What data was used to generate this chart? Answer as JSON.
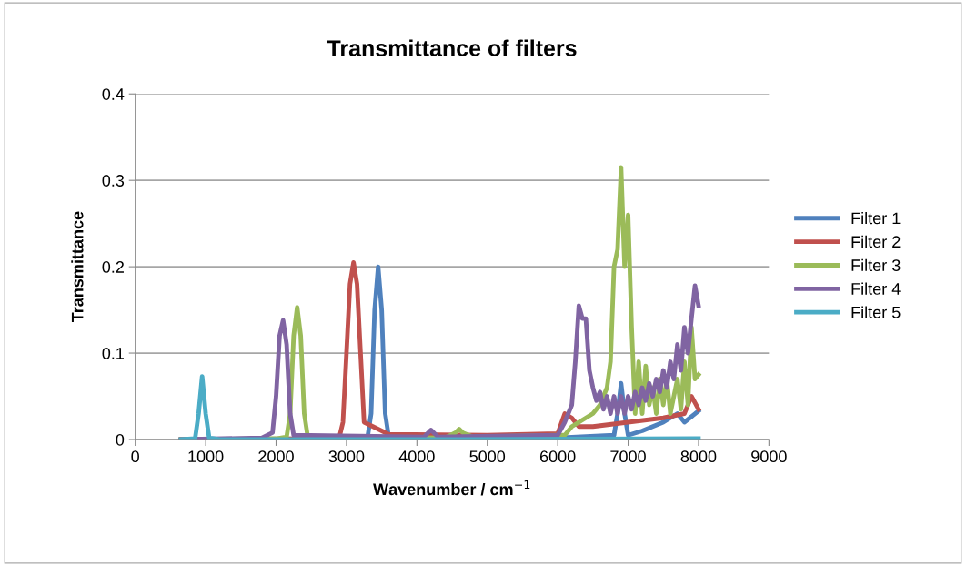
{
  "chart_data": {
    "type": "line",
    "title": "Transmittance of filters",
    "xlabel": "Wavenumber / cm$^{−1}$",
    "ylabel": "Transmittance",
    "xlim": [
      0,
      9000
    ],
    "xticks": [
      0,
      1000,
      2000,
      3000,
      4000,
      5000,
      6000,
      7000,
      8000,
      9000
    ],
    "ylim": [
      0,
      0.4
    ],
    "yticks": [
      0,
      0.1,
      0.2,
      0.3,
      0.4
    ],
    "grid": "y",
    "legend": "right",
    "marker": "none",
    "line_style": "solid",
    "series": [
      {
        "name": "Filter 1",
        "color": "#4f81bd",
        "x": [
          650,
          3000,
          3300,
          3350,
          3400,
          3450,
          3500,
          3550,
          3600,
          4000,
          5000,
          6000,
          6800,
          6850,
          6900,
          6950,
          7000,
          7200,
          7500,
          7700,
          7800,
          8000
        ],
        "values": [
          0,
          0.001,
          0.003,
          0.03,
          0.15,
          0.2,
          0.15,
          0.03,
          0.003,
          0.002,
          0.002,
          0.002,
          0.005,
          0.03,
          0.065,
          0.03,
          0.005,
          0.01,
          0.02,
          0.03,
          0.02,
          0.033
        ]
      },
      {
        "name": "Filter 2",
        "color": "#c0504d",
        "x": [
          650,
          2500,
          2900,
          2950,
          3000,
          3050,
          3100,
          3150,
          3200,
          3250,
          3600,
          5000,
          6000,
          6100,
          6200,
          6300,
          6500,
          7000,
          7500,
          7800,
          7900,
          8000
        ],
        "values": [
          0,
          0.001,
          0.003,
          0.02,
          0.1,
          0.18,
          0.205,
          0.18,
          0.1,
          0.02,
          0.006,
          0.005,
          0.007,
          0.03,
          0.025,
          0.015,
          0.015,
          0.02,
          0.025,
          0.03,
          0.05,
          0.035
        ]
      },
      {
        "name": "Filter 3",
        "color": "#9bbb59",
        "x": [
          650,
          2000,
          2150,
          2200,
          2250,
          2300,
          2350,
          2400,
          2450,
          4400,
          4550,
          4600,
          4650,
          4800,
          6000,
          6100,
          6200,
          6300,
          6400,
          6500,
          6600,
          6700,
          6750,
          6800,
          6850,
          6900,
          6950,
          7000,
          7050,
          7100,
          7150,
          7200,
          7250,
          7300,
          7350,
          7400,
          7450,
          7500,
          7550,
          7600,
          7700,
          7750,
          7800,
          7850,
          7900,
          7950,
          8000
        ],
        "values": [
          0,
          0.001,
          0.003,
          0.03,
          0.12,
          0.153,
          0.12,
          0.03,
          0.003,
          0.002,
          0.008,
          0.012,
          0.008,
          0.003,
          0.005,
          0.005,
          0.015,
          0.02,
          0.025,
          0.03,
          0.04,
          0.06,
          0.09,
          0.2,
          0.22,
          0.315,
          0.2,
          0.26,
          0.13,
          0.03,
          0.09,
          0.03,
          0.085,
          0.04,
          0.06,
          0.03,
          0.07,
          0.04,
          0.07,
          0.03,
          0.07,
          0.035,
          0.09,
          0.04,
          0.13,
          0.07,
          0.075
        ]
      },
      {
        "name": "Filter 4",
        "color": "#8064a2",
        "x": [
          650,
          1800,
          1950,
          2000,
          2050,
          2100,
          2150,
          2200,
          2250,
          4100,
          4200,
          4300,
          6000,
          6100,
          6200,
          6250,
          6300,
          6350,
          6400,
          6450,
          6500,
          6550,
          6600,
          6650,
          6700,
          6750,
          6800,
          6850,
          6900,
          6950,
          7000,
          7050,
          7100,
          7150,
          7200,
          7250,
          7300,
          7350,
          7400,
          7450,
          7500,
          7550,
          7600,
          7650,
          7700,
          7750,
          7800,
          7850,
          7900,
          7950,
          8000
        ],
        "values": [
          0,
          0.002,
          0.008,
          0.05,
          0.12,
          0.138,
          0.11,
          0.03,
          0.005,
          0.003,
          0.011,
          0.003,
          0.005,
          0.02,
          0.04,
          0.09,
          0.155,
          0.14,
          0.14,
          0.08,
          0.06,
          0.045,
          0.055,
          0.035,
          0.05,
          0.03,
          0.05,
          0.03,
          0.05,
          0.03,
          0.05,
          0.035,
          0.055,
          0.04,
          0.06,
          0.045,
          0.065,
          0.05,
          0.07,
          0.055,
          0.08,
          0.06,
          0.09,
          0.07,
          0.11,
          0.08,
          0.13,
          0.1,
          0.14,
          0.178,
          0.155
        ]
      },
      {
        "name": "Filter 5",
        "color": "#4bacc6",
        "x": [
          650,
          850,
          900,
          950,
          1000,
          1050,
          1200,
          4000,
          8000
        ],
        "values": [
          0,
          0.001,
          0.03,
          0.073,
          0.03,
          0.002,
          0,
          0,
          0.001
        ]
      }
    ]
  }
}
